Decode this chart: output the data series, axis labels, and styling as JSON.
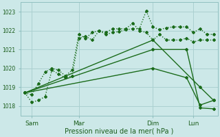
{
  "xlabel": "Pression niveau de la mer( hPa )",
  "ylim": [
    1017.5,
    1023.5
  ],
  "yticks": [
    1018,
    1019,
    1020,
    1021,
    1022,
    1023
  ],
  "xlim": [
    -0.3,
    14.3
  ],
  "xtick_labels": [
    "Sam",
    "Mar",
    "Dim",
    "Lun"
  ],
  "xtick_positions": [
    0.5,
    4.0,
    9.5,
    12.5
  ],
  "bg_color": "#cce8e8",
  "grid_color": "#aad0d0",
  "line_color": "#1a6b1a",
  "line1_x": [
    0,
    0.5,
    1,
    1.5,
    2,
    2.5,
    3,
    3.5,
    4,
    4.5,
    5,
    5.5,
    6,
    6.5,
    7,
    7.5,
    8,
    8.5,
    9,
    9.5,
    10,
    10.5,
    11,
    11.5,
    12,
    12.5,
    13,
    13.5,
    14
  ],
  "line1_y": [
    1018.7,
    1018.6,
    1019.2,
    1019.8,
    1020.0,
    1019.9,
    1019.6,
    1019.9,
    1021.8,
    1021.6,
    1021.9,
    1022.0,
    1021.9,
    1022.1,
    1022.1,
    1022.1,
    1022.4,
    1022.0,
    1021.9,
    1021.5,
    1021.8,
    1021.5,
    1021.5,
    1021.5,
    1021.6,
    1021.4,
    1021.5,
    1021.5,
    1021.5
  ],
  "line2_x": [
    0,
    0.5,
    1,
    1.5,
    2,
    2.5,
    3,
    3.5,
    4,
    4.5,
    5,
    5.5,
    6,
    6.5,
    7,
    7.5,
    8,
    8.5,
    9,
    9.5,
    10,
    10.5,
    11,
    11.5,
    12,
    12.5,
    13,
    13.5,
    14
  ],
  "line2_y": [
    1018.7,
    1018.2,
    1018.3,
    1018.5,
    1019.9,
    1019.7,
    1019.5,
    1019.6,
    1021.6,
    1021.7,
    1021.5,
    1022.0,
    1021.8,
    1021.9,
    1021.95,
    1022.05,
    1022.1,
    1022.1,
    1023.05,
    1022.2,
    1022.05,
    1022.15,
    1022.2,
    1022.2,
    1022.2,
    1021.9,
    1022.1,
    1021.8,
    1021.8
  ],
  "line3_x": [
    0,
    9.5,
    13,
    14
  ],
  "line3_y": [
    1018.7,
    1021.5,
    1019.0,
    1018.3
  ],
  "line4_x": [
    0,
    9.5,
    12,
    13,
    14
  ],
  "line4_y": [
    1018.7,
    1021.0,
    1021.0,
    1017.9,
    1017.85
  ],
  "line5_x": [
    0,
    9.5,
    12,
    13,
    14
  ],
  "line5_y": [
    1018.7,
    1020.0,
    1019.5,
    1018.05,
    1018.3
  ]
}
